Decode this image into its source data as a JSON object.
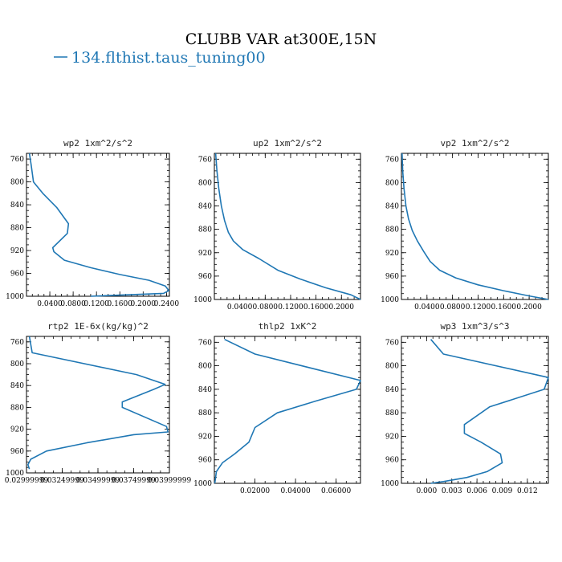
{
  "figure": {
    "title": "CLUBB VAR at300E,15N",
    "legend_label": "134.flthist.taus_tuning00",
    "line_color": "#1f77b4"
  },
  "chart_data": [
    {
      "type": "line",
      "title": "wp2  1xm^2/s^2",
      "xlim": [
        0,
        0.245
      ],
      "ylim": [
        1000,
        750
      ],
      "xticks": [
        0.04,
        0.08,
        0.12,
        0.16,
        0.2,
        0.24
      ],
      "xticklabels": [
        "0.0400",
        "0.0800",
        "0.1200",
        "0.1600",
        "0.2000",
        "0.2400"
      ],
      "yticks": [
        760,
        800,
        840,
        880,
        920,
        960,
        1000
      ],
      "series": [
        {
          "x": [
            0.005,
            0.008,
            0.012,
            0.028,
            0.052,
            0.072,
            0.07,
            0.045,
            0.047,
            0.065,
            0.11,
            0.16,
            0.21,
            0.238,
            0.244,
            0.235,
            0.16,
            0.11
          ],
          "y": [
            750,
            770,
            800,
            820,
            845,
            873,
            890,
            915,
            922,
            937,
            950,
            962,
            972,
            982,
            990,
            995,
            998,
            1000
          ]
        }
      ]
    },
    {
      "type": "line",
      "title": "up2  1xm^2/s^2",
      "xlim": [
        0,
        0.23
      ],
      "ylim": [
        1000,
        750
      ],
      "xticks": [
        0.04,
        0.08,
        0.12,
        0.16,
        0.2
      ],
      "xticklabels": [
        "0.0400",
        "0.0800",
        "0.1200",
        "0.1600",
        "0.2000"
      ],
      "yticks": [
        760,
        800,
        840,
        880,
        920,
        960,
        1000
      ],
      "series": [
        {
          "x": [
            0.002,
            0.004,
            0.007,
            0.011,
            0.016,
            0.022,
            0.03,
            0.045,
            0.07,
            0.1,
            0.135,
            0.175,
            0.215,
            0.23
          ],
          "y": [
            750,
            780,
            810,
            840,
            865,
            885,
            900,
            915,
            930,
            950,
            965,
            980,
            992,
            1000
          ]
        }
      ]
    },
    {
      "type": "line",
      "title": "vp2  1xm^2/s^2",
      "xlim": [
        0,
        0.23
      ],
      "ylim": [
        1000,
        750
      ],
      "xticks": [
        0.04,
        0.08,
        0.12,
        0.16,
        0.2
      ],
      "xticklabels": [
        "0.0400",
        "0.0800",
        "0.1200",
        "0.1600",
        "0.2000"
      ],
      "yticks": [
        760,
        800,
        840,
        880,
        920,
        960,
        1000
      ],
      "series": [
        {
          "x": [
            0.001,
            0.002,
            0.004,
            0.007,
            0.011,
            0.017,
            0.025,
            0.035,
            0.045,
            0.06,
            0.085,
            0.12,
            0.16,
            0.2,
            0.23
          ],
          "y": [
            750,
            780,
            810,
            840,
            862,
            882,
            900,
            918,
            935,
            950,
            963,
            975,
            985,
            994,
            1000
          ]
        }
      ]
    },
    {
      "type": "line",
      "title": "rtp2  1E-6x(kg/kg)^2",
      "xlim": [
        0.02999999,
        0.03999999
      ],
      "ylim": [
        1000,
        750
      ],
      "xticks": [
        0.02999999,
        0.0324999,
        0.0349999,
        0.0374999,
        0.0399999
      ],
      "xticklabels": [
        "0.02999999",
        "0.03249999",
        "0.03499999",
        "0.03749999",
        "0.03999999"
      ],
      "yticks": [
        760,
        800,
        840,
        880,
        920,
        960,
        1000
      ],
      "series": [
        {
          "x": [
            0.0302,
            0.0304,
            0.0377,
            0.0397,
            0.0389,
            0.0367,
            0.0367,
            0.0398,
            0.0399,
            0.0375,
            0.0342,
            0.0314,
            0.0303,
            0.0301,
            0.0302
          ],
          "y": [
            750,
            780,
            820,
            838,
            847,
            870,
            880,
            915,
            925,
            930,
            945,
            960,
            975,
            985,
            993
          ]
        }
      ]
    },
    {
      "type": "line",
      "title": "thlp2  1xK^2",
      "xlim": [
        0,
        0.072
      ],
      "ylim": [
        1000,
        750
      ],
      "xticks": [
        0.02,
        0.04,
        0.06
      ],
      "xticklabels": [
        "0.02000",
        "0.04000",
        "0.06000"
      ],
      "yticks": [
        760,
        800,
        840,
        880,
        920,
        960,
        1000
      ],
      "series": [
        {
          "x": [
            0.005,
            0.02,
            0.072,
            0.07,
            0.05,
            0.031,
            0.02,
            0.017,
            0.01,
            0.004,
            0.001,
            0.0005,
            0.0002
          ],
          "y": [
            755,
            780,
            825,
            840,
            860,
            880,
            905,
            930,
            950,
            965,
            980,
            993,
            1000
          ]
        }
      ]
    },
    {
      "type": "line",
      "title": "wp3  1xm^3/s^3",
      "xlim": [
        -0.003,
        0.0145
      ],
      "ylim": [
        1000,
        750
      ],
      "xticks": [
        0,
        0.003,
        0.006,
        0.009,
        0.012
      ],
      "xticklabels": [
        "0.000",
        "0.003",
        "0.006",
        "0.009",
        "0.012"
      ],
      "yticks": [
        760,
        800,
        840,
        880,
        920,
        960,
        1000
      ],
      "series": [
        {
          "x": [
            0.0005,
            0.002,
            0.0145,
            0.014,
            0.0075,
            0.0045,
            0.0045,
            0.0065,
            0.0088,
            0.009,
            0.0072,
            0.0048,
            0.002,
            0.0005
          ],
          "y": [
            755,
            780,
            820,
            840,
            870,
            900,
            915,
            930,
            950,
            965,
            980,
            990,
            997,
            1000
          ]
        }
      ]
    }
  ]
}
